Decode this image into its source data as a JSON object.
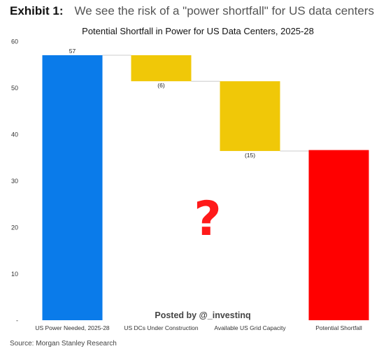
{
  "exhibit": {
    "label": "Exhibit 1:",
    "title": "We see the risk of a \"power shortfall\" for US data centers"
  },
  "source": "Source: Morgan Stanley Research",
  "watermark": "Posted by @_investinq",
  "annotation": "?",
  "colors": {
    "needed": "#0a7bea",
    "reduction": "#f0c808",
    "shortfall": "#ff0000",
    "question": "#ff1a1a",
    "axis_text": "#333333",
    "connector": "#cccccc"
  },
  "chart_data": {
    "type": "bar",
    "subtype": "waterfall",
    "title": "Potential Shortfall in Power for US Data Centers, 2025-28",
    "xlabel": "",
    "ylabel": "",
    "ylim": [
      0,
      60
    ],
    "yticks": [
      {
        "value": 0,
        "label": "-"
      },
      {
        "value": 10,
        "label": "10"
      },
      {
        "value": 20,
        "label": "20"
      },
      {
        "value": 30,
        "label": "30"
      },
      {
        "value": 40,
        "label": "40"
      },
      {
        "value": 50,
        "label": "50"
      },
      {
        "value": 60,
        "label": "60"
      }
    ],
    "grid": false,
    "legend": "none",
    "bars": [
      {
        "category": "US Power Needed, 2025-28",
        "base": 0,
        "top": 57,
        "label": "57",
        "kind": "needed"
      },
      {
        "category": "US DCs Under Construction",
        "base": 51.4,
        "top": 57,
        "label": "(6)",
        "kind": "reduction"
      },
      {
        "category": "Available US Grid Capacity",
        "base": 36.4,
        "top": 51.4,
        "label": "(15)",
        "kind": "reduction"
      },
      {
        "category": "Potential Shortfall",
        "base": 0,
        "top": 36.6,
        "label": "",
        "kind": "shortfall"
      }
    ]
  }
}
